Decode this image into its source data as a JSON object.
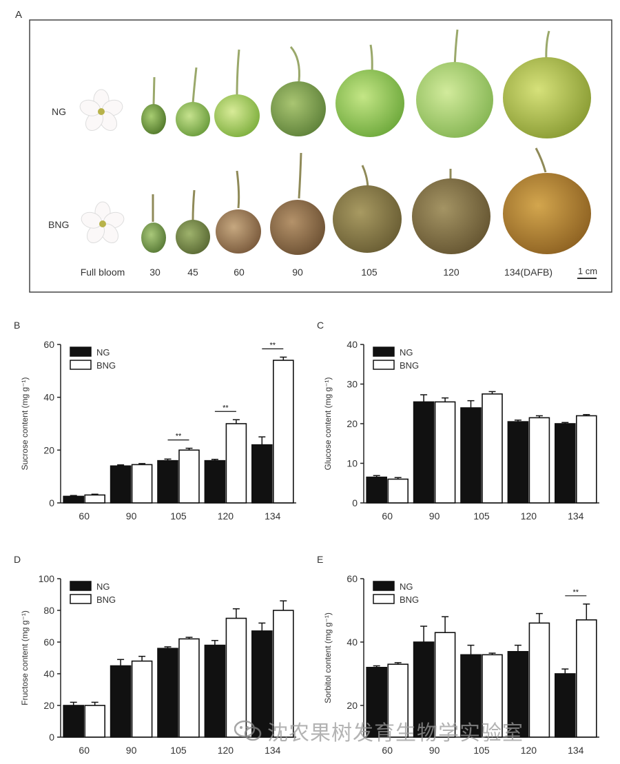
{
  "panelA": {
    "letter": "A",
    "rows": [
      "NG",
      "BNG"
    ],
    "stages": [
      "Full bloom",
      "30",
      "45",
      "60",
      "90",
      "105",
      "120",
      "134(DAFB)"
    ],
    "scale": "1 cm"
  },
  "chart_data": [
    {
      "letter": "B",
      "type": "bar",
      "ylabel": "Sucrose content (mg g⁻¹)",
      "categories": [
        "60",
        "90",
        "105",
        "120",
        "134"
      ],
      "ylim": [
        0,
        60
      ],
      "yticks": [
        0,
        20,
        40,
        60
      ],
      "series": [
        {
          "name": "NG",
          "values": [
            2.5,
            14,
            16,
            16,
            22
          ],
          "errors": [
            0.3,
            0.4,
            0.6,
            0.5,
            3
          ]
        },
        {
          "name": "BNG",
          "values": [
            3,
            14.5,
            20,
            30,
            54
          ],
          "errors": [
            0.3,
            0.4,
            0.7,
            1.5,
            1.2
          ]
        }
      ],
      "sig": [
        {
          "i": 2,
          "label": "**"
        },
        {
          "i": 3,
          "label": "**"
        },
        {
          "i": 4,
          "label": "**"
        }
      ]
    },
    {
      "letter": "C",
      "type": "bar",
      "ylabel": "Glucose content (mg g⁻¹)",
      "categories": [
        "60",
        "90",
        "105",
        "120",
        "134"
      ],
      "ylim": [
        0,
        40
      ],
      "yticks": [
        0,
        10,
        20,
        30,
        40
      ],
      "series": [
        {
          "name": "NG",
          "values": [
            6.5,
            25.5,
            24,
            20.5,
            20
          ],
          "errors": [
            0.4,
            1.8,
            1.8,
            0.4,
            0.3
          ]
        },
        {
          "name": "BNG",
          "values": [
            6,
            25.5,
            27.5,
            21.5,
            22
          ],
          "errors": [
            0.4,
            1,
            0.6,
            0.5,
            0.3
          ]
        }
      ],
      "sig": []
    },
    {
      "letter": "D",
      "type": "bar",
      "ylabel": "Fructose content (mg g⁻¹)",
      "categories": [
        "60",
        "90",
        "105",
        "120",
        "134"
      ],
      "ylim": [
        0,
        100
      ],
      "yticks": [
        0,
        20,
        40,
        60,
        80,
        100
      ],
      "series": [
        {
          "name": "NG",
          "values": [
            20,
            45,
            56,
            58,
            67
          ],
          "errors": [
            2,
            4,
            1,
            3,
            5
          ]
        },
        {
          "name": "BNG",
          "values": [
            20,
            48,
            62,
            75,
            80
          ],
          "errors": [
            2,
            3,
            1,
            6,
            6
          ]
        }
      ],
      "sig": []
    },
    {
      "letter": "E",
      "type": "bar",
      "ylabel": "Sorbitol content (mg g⁻¹)",
      "categories": [
        "60",
        "90",
        "105",
        "120",
        "134"
      ],
      "ylim": [
        10,
        60
      ],
      "yticks": [
        20,
        40,
        60
      ],
      "series": [
        {
          "name": "NG",
          "values": [
            32,
            40,
            36,
            37,
            30
          ],
          "errors": [
            0.5,
            5,
            3,
            2,
            1.5
          ]
        },
        {
          "name": "BNG",
          "values": [
            33,
            43,
            36,
            46,
            47
          ],
          "errors": [
            0.5,
            5,
            0.5,
            3,
            5
          ]
        }
      ],
      "sig": [
        {
          "i": 4,
          "label": "**"
        }
      ]
    }
  ],
  "watermark": "沈农果树发育生物学实验室",
  "colors": {
    "ng": "#111111",
    "bng": "#ffffff",
    "axis": "#222222"
  }
}
